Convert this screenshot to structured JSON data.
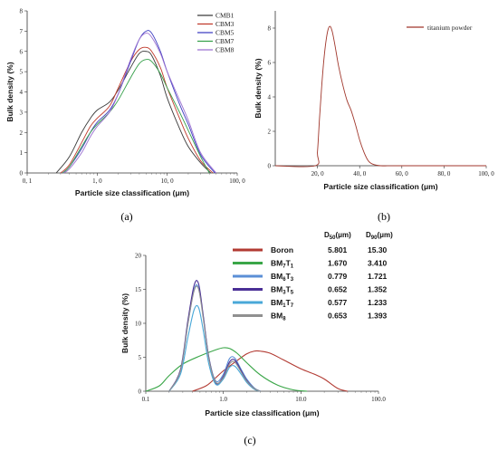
{
  "chart_data": [
    {
      "type": "line",
      "panel_label": "(a)",
      "xlabel": "Particle size classification (μm)",
      "ylabel": "Bulk density (%)",
      "x_scale": "log",
      "xlim": [
        0.1,
        100
      ],
      "ylim": [
        0,
        8
      ],
      "x_ticks": [
        "0, 1",
        "1, 0",
        "10, 0",
        "100, 0"
      ],
      "x_tick_values": [
        0.1,
        1,
        10,
        100
      ],
      "y_ticks": [
        "0",
        "1",
        "2",
        "3",
        "4",
        "5",
        "6",
        "7",
        "8"
      ],
      "legend_position": "top-right",
      "grid": false,
      "series": [
        {
          "name": "CMB1",
          "color": "#3a3a3a",
          "x": [
            0.26,
            0.4,
            0.6,
            0.8,
            1.0,
            1.5,
            2.0,
            3.0,
            4.0,
            5.0,
            6.0,
            8.0,
            10,
            15,
            20,
            30,
            42
          ],
          "y": [
            0,
            0.8,
            2.0,
            2.7,
            3.1,
            3.5,
            4.1,
            5.2,
            5.9,
            6.0,
            5.8,
            4.8,
            3.7,
            2.2,
            1.3,
            0.5,
            0
          ]
        },
        {
          "name": "CBM3",
          "color": "#c0392b",
          "x": [
            0.3,
            0.4,
            0.6,
            0.8,
            1.0,
            1.5,
            2.0,
            3.0,
            4.0,
            5.0,
            6.0,
            8.0,
            10,
            15,
            20,
            30,
            45
          ],
          "y": [
            0,
            0.4,
            1.5,
            2.3,
            2.7,
            3.3,
            4.2,
            5.5,
            6.1,
            6.2,
            6.0,
            5.2,
            4.2,
            2.7,
            1.7,
            0.6,
            0
          ]
        },
        {
          "name": "CBM5",
          "color": "#3f3fc2",
          "x": [
            0.32,
            0.4,
            0.6,
            0.8,
            1.0,
            1.5,
            2.0,
            3.0,
            4.0,
            5.0,
            6.0,
            8.0,
            10,
            15,
            20,
            30,
            48
          ],
          "y": [
            0,
            0.3,
            1.2,
            2.0,
            2.5,
            3.1,
            3.9,
            5.5,
            6.6,
            7.0,
            6.9,
            6.0,
            5.0,
            3.4,
            2.4,
            0.9,
            0
          ]
        },
        {
          "name": "CBM7",
          "color": "#35a04a",
          "x": [
            0.32,
            0.4,
            0.6,
            0.8,
            1.0,
            1.5,
            2.0,
            3.0,
            4.0,
            5.0,
            6.0,
            8.0,
            10,
            15,
            20,
            30,
            40
          ],
          "y": [
            0,
            0.3,
            1.3,
            2.0,
            2.4,
            3.0,
            3.6,
            4.7,
            5.4,
            5.6,
            5.5,
            4.9,
            4.2,
            3.0,
            2.1,
            0.8,
            0
          ]
        },
        {
          "name": "CBM8",
          "color": "#9a6fd0",
          "x": [
            0.33,
            0.4,
            0.6,
            0.8,
            1.0,
            1.5,
            2.0,
            3.0,
            4.0,
            5.0,
            6.0,
            8.0,
            10,
            15,
            20,
            30,
            50
          ],
          "y": [
            0,
            0.2,
            1.0,
            1.8,
            2.3,
            3.0,
            3.9,
            5.6,
            6.6,
            6.9,
            6.7,
            5.9,
            5.0,
            3.6,
            2.6,
            1.0,
            0
          ]
        }
      ]
    },
    {
      "type": "line",
      "panel_label": "(b)",
      "xlabel": "Particle size classification (μm)",
      "ylabel": "Bulk density (%)",
      "xlim": [
        0,
        100
      ],
      "ylim": [
        0,
        9
      ],
      "x_ticks": [
        "20, 0",
        "40, 0",
        "60, 0",
        "80, 0",
        "100, 0"
      ],
      "x_tick_values": [
        20,
        40,
        60,
        80,
        100
      ],
      "y_ticks": [
        "0",
        "2",
        "4",
        "6",
        "8"
      ],
      "y_tick_values": [
        0,
        2,
        4,
        6,
        8
      ],
      "legend_position": "top-right",
      "grid": false,
      "series": [
        {
          "name": "titanium powder",
          "color": "#a0362b",
          "x": [
            0,
            19,
            20,
            21,
            22,
            23,
            24,
            25,
            26,
            27,
            28,
            29,
            30,
            32,
            34,
            36,
            38,
            40,
            42,
            44,
            46,
            50,
            60,
            100
          ],
          "y": [
            0,
            0,
            0.8,
            2.8,
            4.6,
            6.1,
            7.2,
            7.9,
            8.1,
            7.8,
            7.2,
            6.5,
            5.8,
            4.7,
            3.8,
            3.2,
            2.4,
            1.5,
            0.8,
            0.3,
            0.1,
            0,
            0,
            0
          ]
        }
      ]
    },
    {
      "type": "line",
      "panel_label": "(c)",
      "xlabel": "Particle size classification (μm)",
      "ylabel": "Bulk density (%)",
      "x_scale": "log",
      "xlim": [
        0.1,
        100
      ],
      "ylim": [
        0,
        20
      ],
      "x_ticks": [
        "0.1",
        "1.0",
        "10.0",
        "100.0"
      ],
      "x_tick_values": [
        0.1,
        1,
        10,
        100
      ],
      "y_ticks": [
        "0",
        "5",
        "10",
        "15",
        "20"
      ],
      "y_tick_values": [
        0,
        5,
        10,
        15,
        20
      ],
      "legend_position": "top-right",
      "table_headers": [
        "D50(μm)",
        "D90(μm)"
      ],
      "grid": false,
      "series": [
        {
          "name": "Boron",
          "d50": "5.801",
          "d90": "15.30",
          "color": "#b23a32",
          "x": [
            0.4,
            0.6,
            0.8,
            1.0,
            1.5,
            2.0,
            2.5,
            3.0,
            4.0,
            6.0,
            10,
            15,
            20,
            30,
            40
          ],
          "y": [
            0,
            0.8,
            2.0,
            3.0,
            4.5,
            5.5,
            5.9,
            5.9,
            5.6,
            4.6,
            3.3,
            2.5,
            1.8,
            0.4,
            0
          ]
        },
        {
          "name": "BM7T1",
          "d50": "1.670",
          "d90": "3.410",
          "color": "#3aa648",
          "x": [
            0.1,
            0.15,
            0.2,
            0.3,
            0.5,
            0.8,
            1.0,
            1.2,
            1.5,
            2.0,
            3.0,
            5.0,
            8.0,
            12
          ],
          "y": [
            0,
            0.8,
            2.3,
            4.0,
            5.2,
            6.1,
            6.4,
            6.3,
            5.6,
            4.2,
            2.4,
            0.9,
            0.2,
            0
          ]
        },
        {
          "name": "BM6T3",
          "d50": "0.779",
          "d90": "1.721",
          "color": "#5b8fd6",
          "x": [
            0.2,
            0.28,
            0.35,
            0.42,
            0.48,
            0.55,
            0.65,
            0.8,
            1.0,
            1.2,
            1.4,
            1.7,
            2.0,
            2.5,
            3.0
          ],
          "y": [
            0,
            3,
            10,
            15,
            15.2,
            11,
            5,
            1.5,
            2.5,
            4.8,
            4.9,
            3.2,
            1.8,
            0.5,
            0
          ]
        },
        {
          "name": "BM3T5",
          "d50": "0.652",
          "d90": "1.352",
          "color": "#4a2f96",
          "x": [
            0.2,
            0.28,
            0.35,
            0.42,
            0.48,
            0.55,
            0.65,
            0.8,
            1.0,
            1.2,
            1.4,
            1.7,
            2.0,
            2.5,
            3.0
          ],
          "y": [
            0,
            3.2,
            10.5,
            15.6,
            15.8,
            11.2,
            5,
            1.2,
            2.2,
            4.3,
            4.6,
            3,
            1.6,
            0.4,
            0
          ]
        },
        {
          "name": "BM1T7",
          "d50": "0.577",
          "d90": "1.233",
          "color": "#49a8d8",
          "x": [
            0.2,
            0.28,
            0.35,
            0.42,
            0.48,
            0.55,
            0.65,
            0.8,
            1.0,
            1.2,
            1.4,
            1.7,
            2.0,
            2.5,
            3.0
          ],
          "y": [
            0,
            2.5,
            8,
            12.0,
            12.3,
            9,
            4,
            1,
            1.8,
            3.5,
            3.7,
            2.5,
            1.3,
            0.3,
            0
          ]
        },
        {
          "name": "BM8",
          "d50": "0.653",
          "d90": "1.393",
          "color": "#909090",
          "x": [
            0.2,
            0.28,
            0.35,
            0.42,
            0.48,
            0.55,
            0.65,
            0.8,
            1.0,
            1.2,
            1.4,
            1.7,
            2.0,
            2.5,
            3.0
          ],
          "y": [
            0,
            3,
            10,
            14.8,
            15.0,
            10.8,
            4.8,
            1.3,
            2.0,
            4.0,
            4.3,
            2.8,
            1.5,
            0.4,
            0
          ]
        }
      ]
    }
  ]
}
